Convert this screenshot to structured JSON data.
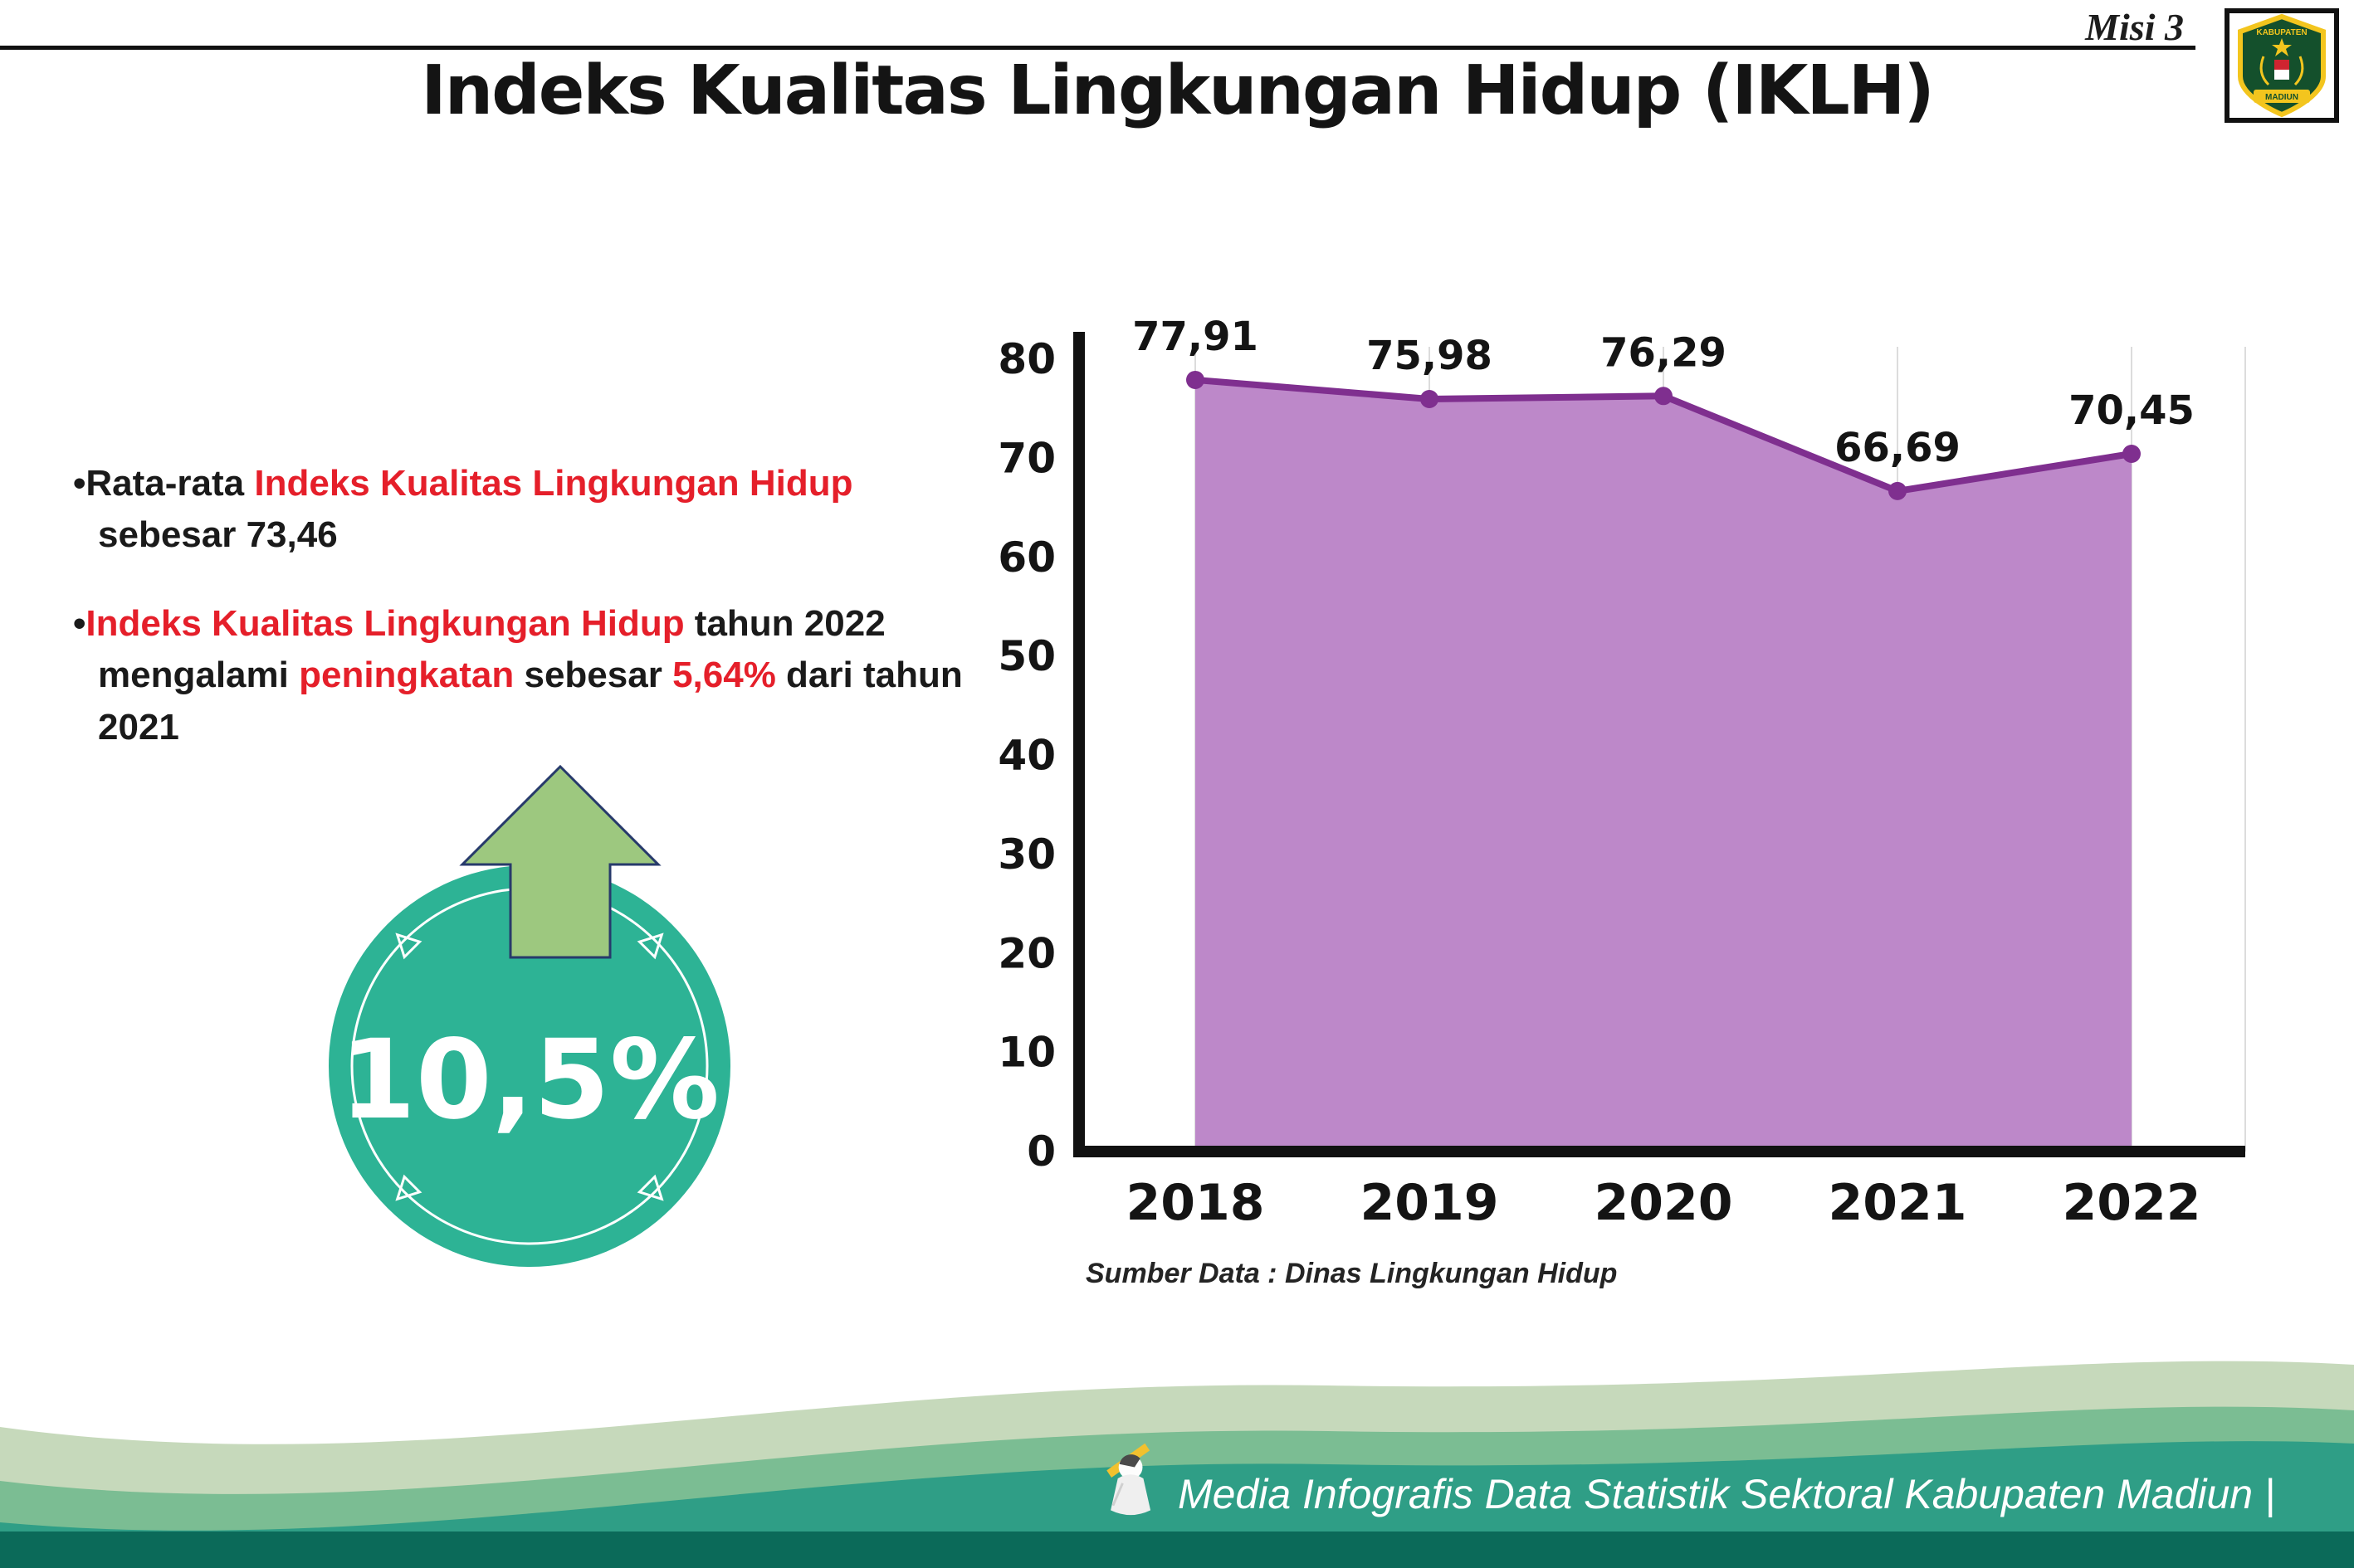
{
  "header": {
    "misi": "Misi 3",
    "title": "Indeks Kualitas Lingkungan Hidup (IKLH)"
  },
  "logo": {
    "top_text": "KABUPATEN",
    "bottom_text": "MADIUN"
  },
  "colors": {
    "red": "#e51f2a",
    "text": "#1a1a1a",
    "teal_circle": "#2db395",
    "arrow_green": "#9dc87f",
    "arrow_outline": "#273a6b",
    "footer_sage": "#c6d9bb",
    "footer_mid_green": "#7bbd93",
    "footer_teal": "#2f9e86",
    "footer_dark": "#0b6a59"
  },
  "bullets": [
    {
      "segments": [
        {
          "t": "Rata-rata ",
          "c": "black"
        },
        {
          "t": "Indeks Kualitas Lingkungan Hidup",
          "c": "red"
        },
        {
          "t": " sebesar 73,46",
          "c": "black"
        }
      ]
    },
    {
      "segments": [
        {
          "t": "Indeks Kualitas Lingkungan Hidup",
          "c": "red"
        },
        {
          "t": " tahun 2022 mengalami ",
          "c": "black"
        },
        {
          "t": "peningkatan",
          "c": "red"
        },
        {
          "t": " sebesar ",
          "c": "black"
        },
        {
          "t": "5,64%",
          "c": "red"
        },
        {
          "t": " dari tahun 2021",
          "c": "black"
        }
      ]
    }
  ],
  "badge": {
    "value": "10,5%"
  },
  "chart_data": {
    "type": "area",
    "title": "Indeks Kualitas Lingkungan Hidup (IKLH)",
    "categories": [
      "2018",
      "2019",
      "2020",
      "2021",
      "2022"
    ],
    "values": [
      77.91,
      75.98,
      76.29,
      66.69,
      70.45
    ],
    "value_labels": [
      "77,91",
      "75,98",
      "76,29",
      "66,69",
      "70,45"
    ],
    "ylim": [
      0,
      80
    ],
    "ytick_step": 10,
    "xlabel": "",
    "ylabel": "",
    "grid": "vertical-light",
    "legend": "none",
    "line_color": "#7f2f8f",
    "fill_color": "#bd88c9",
    "source": "Sumber Data : Dinas Lingkungan Hidup"
  },
  "footer": {
    "text": "Media Infografis Data Statistik Sektoral Kabupaten Madiun |"
  }
}
